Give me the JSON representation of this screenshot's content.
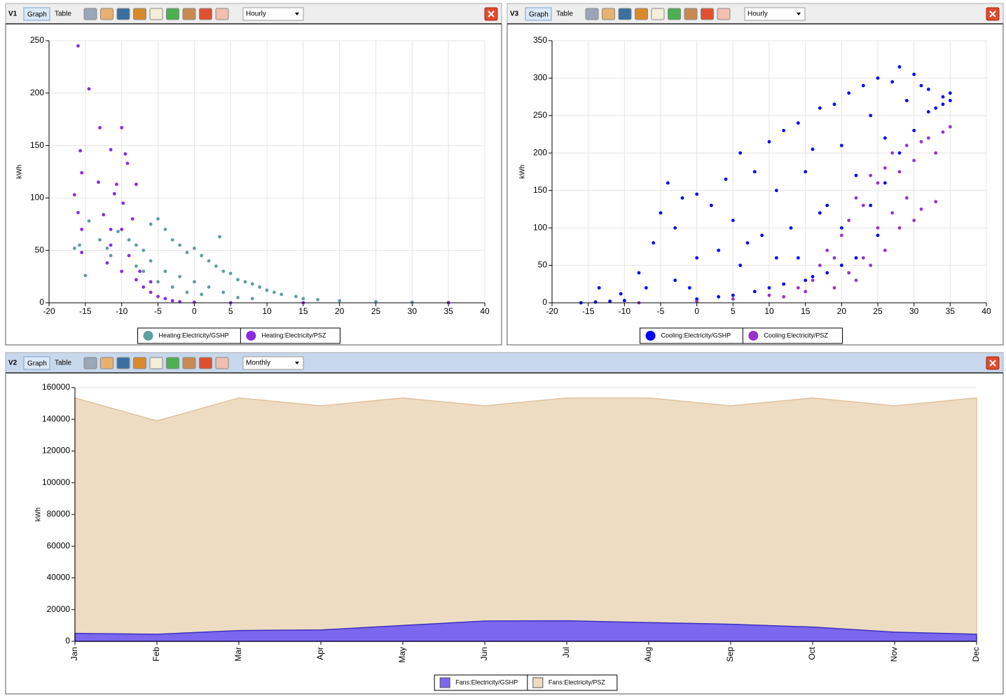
{
  "panels": [
    {
      "label": "V1",
      "tabs": [
        "Graph",
        "Table"
      ],
      "interval": "Hourly"
    },
    {
      "label": "V3",
      "tabs": [
        "Graph",
        "Table"
      ],
      "interval": "Hourly"
    },
    {
      "label": "V2",
      "tabs": [
        "Graph",
        "Table"
      ],
      "interval": "Monthly"
    }
  ],
  "chart_data": [
    {
      "type": "scatter",
      "y_label": "kWh",
      "xlim": [
        -20,
        40
      ],
      "ylim": [
        0,
        250
      ],
      "xticks": [
        -20,
        -15,
        -10,
        -5,
        0,
        5,
        10,
        15,
        20,
        25,
        30,
        35,
        40
      ],
      "yticks": [
        0,
        50,
        100,
        150,
        200,
        250
      ],
      "grid": true,
      "legend": "bottom",
      "series": [
        {
          "name": "Heating:Electricity/GSHP",
          "color": "#5f9ea0",
          "x": [
            -16.5,
            -15.8,
            -15,
            -14.5,
            -13,
            -12,
            -11.5,
            -10.5,
            -9,
            -8,
            -7,
            -6,
            -5,
            -4,
            -3,
            -2,
            -1,
            0,
            1,
            2,
            3,
            3.5,
            4,
            5,
            6,
            7,
            8,
            9,
            10,
            11,
            12,
            14,
            15,
            17,
            20,
            25,
            30,
            35,
            -6,
            -4,
            -2,
            0,
            2,
            4,
            -5,
            -3,
            -1,
            1,
            6,
            8,
            -7,
            -8
          ],
          "values": [
            52,
            55,
            26,
            78,
            60,
            52,
            45,
            68,
            60,
            55,
            50,
            75,
            80,
            70,
            60,
            55,
            48,
            52,
            45,
            40,
            35,
            63,
            30,
            28,
            22,
            20,
            18,
            15,
            12,
            10,
            8,
            6,
            4,
            3,
            2,
            1,
            0.5,
            0.3,
            40,
            30,
            25,
            20,
            15,
            10,
            20,
            15,
            10,
            8,
            5,
            4,
            30,
            35
          ]
        },
        {
          "name": "Heating:Electricity/PSZ",
          "color": "#8b2be0",
          "x": [
            -16,
            -14.5,
            -13,
            -10,
            -15.7,
            -11.5,
            -9.5,
            -9.2,
            -15.5,
            -13.2,
            -10.7,
            -11,
            -16.5,
            -8,
            -9.8,
            -16,
            -15.5,
            -12.5,
            -11.5,
            -10,
            -8.5,
            -15.5,
            -12,
            -10,
            -8,
            -7,
            -6,
            -5,
            -4,
            -3,
            -2,
            0,
            5,
            15,
            35,
            -7.5,
            -6,
            -9,
            -11.5
          ],
          "values": [
            245,
            204,
            167,
            167,
            145,
            146,
            142,
            133,
            124,
            115,
            113,
            104,
            103,
            113,
            95,
            86,
            70,
            84,
            70,
            70,
            80,
            48,
            38,
            30,
            22,
            15,
            10,
            6,
            4,
            2,
            1,
            0.5,
            0,
            0,
            0,
            30,
            20,
            45,
            55
          ]
        }
      ]
    },
    {
      "type": "scatter",
      "y_label": "kWh",
      "xlim": [
        -20,
        40
      ],
      "ylim": [
        0,
        350
      ],
      "xticks": [
        -20,
        -15,
        -10,
        -5,
        0,
        5,
        10,
        15,
        20,
        25,
        30,
        35,
        40
      ],
      "yticks": [
        0,
        50,
        100,
        150,
        200,
        250,
        300,
        350
      ],
      "grid": true,
      "legend": "bottom",
      "series": [
        {
          "name": "Cooling:Electricity/GSHP",
          "color": "#0000ff",
          "x": [
            -16,
            -14,
            -12,
            -13.5,
            -10,
            -10.5,
            -8,
            -6,
            -5,
            -4,
            -3,
            -2,
            0,
            -7,
            -3,
            0,
            2,
            4,
            5,
            6,
            7,
            8,
            10,
            11,
            12,
            13,
            14,
            15,
            16,
            17,
            18,
            19,
            20,
            21,
            22,
            23,
            24,
            25,
            26,
            27,
            28,
            29,
            30,
            31,
            32,
            33,
            34,
            35,
            24,
            26,
            28,
            30,
            32,
            5,
            10,
            15,
            18,
            20,
            22,
            25,
            0,
            3,
            8,
            12,
            16,
            6,
            9,
            14,
            17,
            20,
            3,
            11,
            -1,
            34,
            35
          ],
          "values": [
            0,
            1,
            2,
            20,
            3,
            12,
            40,
            80,
            120,
            160,
            100,
            140,
            145,
            20,
            30,
            60,
            130,
            165,
            110,
            200,
            80,
            175,
            215,
            150,
            230,
            100,
            240,
            175,
            205,
            260,
            130,
            265,
            210,
            280,
            170,
            290,
            250,
            300,
            220,
            295,
            315,
            270,
            305,
            290,
            285,
            260,
            275,
            280,
            130,
            160,
            200,
            230,
            255,
            10,
            20,
            30,
            40,
            50,
            60,
            90,
            5,
            8,
            15,
            25,
            35,
            50,
            90,
            60,
            120,
            100,
            70,
            60,
            20,
            265,
            270
          ]
        },
        {
          "name": "Cooling:Electricity/PSZ",
          "color": "#9932cc",
          "x": [
            -8,
            0,
            5,
            10,
            14,
            16,
            17,
            18,
            19,
            20,
            21,
            22,
            23,
            24,
            25,
            26,
            27,
            28,
            29,
            30,
            31,
            32,
            33,
            34,
            35,
            21,
            23,
            25,
            27,
            29,
            31,
            33,
            28,
            30,
            22,
            24,
            26,
            19,
            15,
            12
          ],
          "values": [
            0,
            2,
            5,
            10,
            20,
            30,
            50,
            70,
            60,
            90,
            110,
            140,
            130,
            170,
            160,
            180,
            200,
            175,
            210,
            190,
            215,
            220,
            200,
            228,
            235,
            40,
            60,
            100,
            120,
            140,
            125,
            135,
            100,
            110,
            30,
            50,
            70,
            20,
            15,
            8
          ]
        }
      ]
    },
    {
      "type": "area",
      "y_label": "kWh",
      "ylim": [
        0,
        160000
      ],
      "yticks": [
        0,
        20000,
        40000,
        60000,
        80000,
        100000,
        120000,
        140000,
        160000
      ],
      "grid": true,
      "legend": "bottom",
      "categories": [
        "Jan",
        "Feb",
        "Mar",
        "Apr",
        "May",
        "Jun",
        "Jul",
        "Aug",
        "Sep",
        "Oct",
        "Nov",
        "Dec"
      ],
      "series": [
        {
          "name": "Fans:Electricity/GSHP",
          "color": "#7b68ee",
          "values": [
            5000,
            4500,
            6800,
            7200,
            10000,
            12800,
            13000,
            11800,
            10800,
            9000,
            5800,
            4500
          ]
        },
        {
          "name": "Fans:Electricity/PSZ",
          "color": "#eedcc2",
          "values": [
            153500,
            139000,
            153500,
            148500,
            153500,
            148500,
            153500,
            153500,
            148500,
            153500,
            148500,
            153500
          ]
        }
      ]
    }
  ]
}
